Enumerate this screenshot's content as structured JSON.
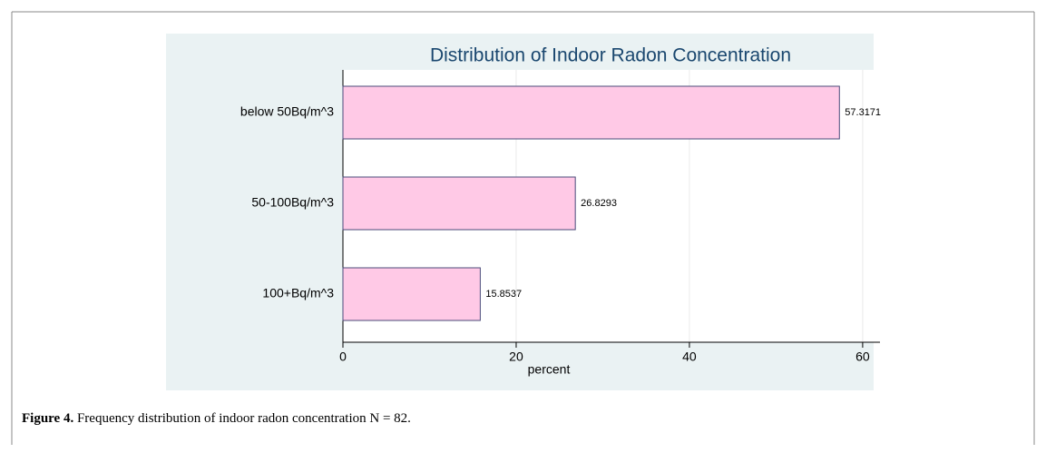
{
  "chart_data": {
    "type": "barh",
    "title": "Distribution of Indoor Radon Concentration",
    "categories": [
      "below 50Bq/m^3",
      "50-100Bq/m^3",
      "100+Bq/m^3"
    ],
    "values": [
      57.3171,
      26.8293,
      15.8537
    ],
    "color": "#ffc9e6",
    "xlabel": "percent",
    "xlim": [
      0,
      62
    ],
    "xticks": [
      0,
      20,
      40,
      60
    ],
    "grid": true
  },
  "caption": {
    "label": "Figure 4.",
    "text": "Frequency distribution of indoor radon concentration N = 82."
  }
}
